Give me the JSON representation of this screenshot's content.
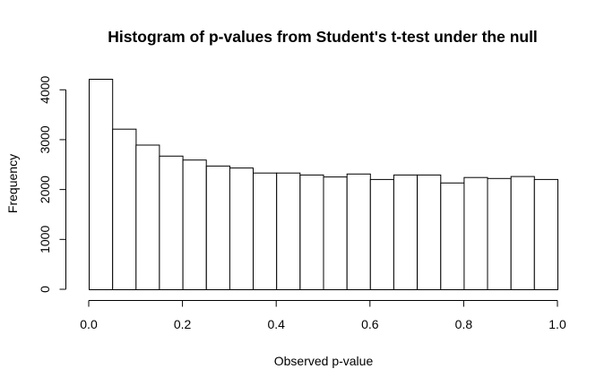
{
  "chart_data": {
    "type": "bar",
    "title": "Histogram of p-values from Student's t-test under the null",
    "xlabel": "Observed p-value",
    "ylabel": "Frequency",
    "bin_edges": [
      0.0,
      0.05,
      0.1,
      0.15,
      0.2,
      0.25,
      0.3,
      0.35,
      0.4,
      0.45,
      0.5,
      0.55,
      0.6,
      0.65,
      0.7,
      0.75,
      0.8,
      0.85,
      0.9,
      0.95,
      1.0
    ],
    "values": [
      4220,
      3220,
      2900,
      2680,
      2600,
      2480,
      2440,
      2340,
      2340,
      2300,
      2260,
      2320,
      2210,
      2300,
      2300,
      2140,
      2250,
      2230,
      2270,
      2210
    ],
    "xlim": [
      0.0,
      1.0
    ],
    "ylim": [
      0,
      4220
    ],
    "x_ticks": [
      0.0,
      0.2,
      0.4,
      0.6,
      0.8,
      1.0
    ],
    "x_tick_labels": [
      "0.0",
      "0.2",
      "0.4",
      "0.6",
      "0.8",
      "1.0"
    ],
    "y_ticks": [
      0,
      1000,
      2000,
      3000,
      4000
    ],
    "y_tick_labels": [
      "0",
      "1000",
      "2000",
      "3000",
      "4000"
    ],
    "grid": false,
    "legend": "none",
    "bar_fill": "#ffffff",
    "bar_stroke": "#000000"
  }
}
